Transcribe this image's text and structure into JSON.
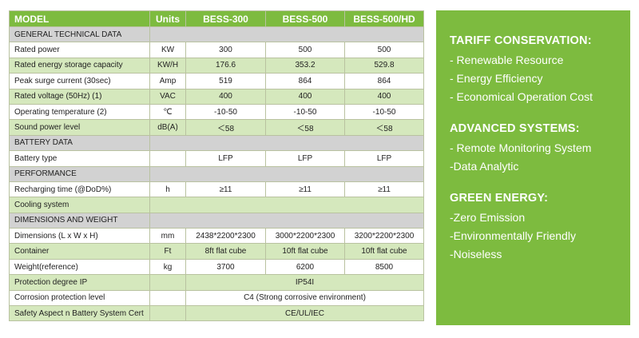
{
  "table": {
    "header": [
      "MODEL",
      "Units",
      "BESS-300",
      "BESS-500",
      "BESS-500/HD"
    ],
    "rows": [
      {
        "type": "section",
        "label": "GENERAL TECHNICAL DATA"
      },
      {
        "type": "data",
        "label": "Rated power",
        "unit": "KW",
        "v": [
          "300",
          "500",
          "500"
        ]
      },
      {
        "type": "data",
        "label": "Rated energy storage capacity",
        "unit": "KW/H",
        "v": [
          "176.6",
          "353.2",
          "529.8"
        ]
      },
      {
        "type": "data",
        "label": "Peak surge current (30sec)",
        "unit": "Amp",
        "v": [
          "519",
          "864",
          "864"
        ]
      },
      {
        "type": "data",
        "label": "Rated voltage (50Hz) (1)",
        "unit": "VAC",
        "v": [
          "400",
          "400",
          "400"
        ]
      },
      {
        "type": "data",
        "label": "Operating temperature (2)",
        "unit": "℃",
        "v": [
          "-10-50",
          "-10-50",
          "-10-50"
        ]
      },
      {
        "type": "data",
        "label": "Sound power level",
        "unit": "dB(A)",
        "v": [
          "＜58",
          "＜58",
          "＜58"
        ]
      },
      {
        "type": "section",
        "label": "BATTERY DATA"
      },
      {
        "type": "data",
        "label": "Battery type",
        "unit": "",
        "v": [
          "LFP",
          "LFP",
          "LFP"
        ]
      },
      {
        "type": "section",
        "label": "PERFORMANCE"
      },
      {
        "type": "data",
        "label": "Recharging time (@DoD%)",
        "unit": "h",
        "v": [
          "≥11",
          "≥11",
          "≥11"
        ]
      },
      {
        "type": "empty",
        "label": "Cooling system"
      },
      {
        "type": "section",
        "label": "DIMENSIONS AND WEIGHT"
      },
      {
        "type": "data",
        "label": "Dimensions (L x W x H)",
        "unit": "mm",
        "v": [
          "2438*2200*2300",
          "3000*2200*2300",
          "3200*2200*2300"
        ]
      },
      {
        "type": "data",
        "label": "Container",
        "unit": "Ft",
        "v": [
          "8ft flat cube",
          "10ft flat cube",
          "10ft flat cube"
        ]
      },
      {
        "type": "data",
        "label": "Weight(reference)",
        "unit": "kg",
        "v": [
          "3700",
          "6200",
          "8500"
        ]
      },
      {
        "type": "merged",
        "label": "Protection degree IP",
        "value": "IP54I"
      },
      {
        "type": "merged",
        "label": "Corrosion protection level",
        "value": "C4 (Strong corrosive environment)"
      },
      {
        "type": "merged",
        "label": "Safety Aspect n Battery System Cert",
        "value": "CE/UL/IEC"
      }
    ]
  },
  "panel": {
    "sections": [
      {
        "title": "TARIFF CONSERVATION:",
        "items": [
          "- Renewable Resource",
          "- Energy Efficiency",
          "- Economical Operation Cost"
        ]
      },
      {
        "title": "ADVANCED SYSTEMS:",
        "items": [
          "- Remote Monitoring System",
          "-Data Analytic"
        ]
      },
      {
        "title": "GREEN ENERGY:",
        "items": [
          "-Zero Emission",
          "-Environmentally Friendly",
          "-Noiseless"
        ]
      }
    ]
  },
  "colors": {
    "accent": "#7dbb3f",
    "row_green": "#d5e8bd",
    "row_grey": "#d2d2d2"
  }
}
